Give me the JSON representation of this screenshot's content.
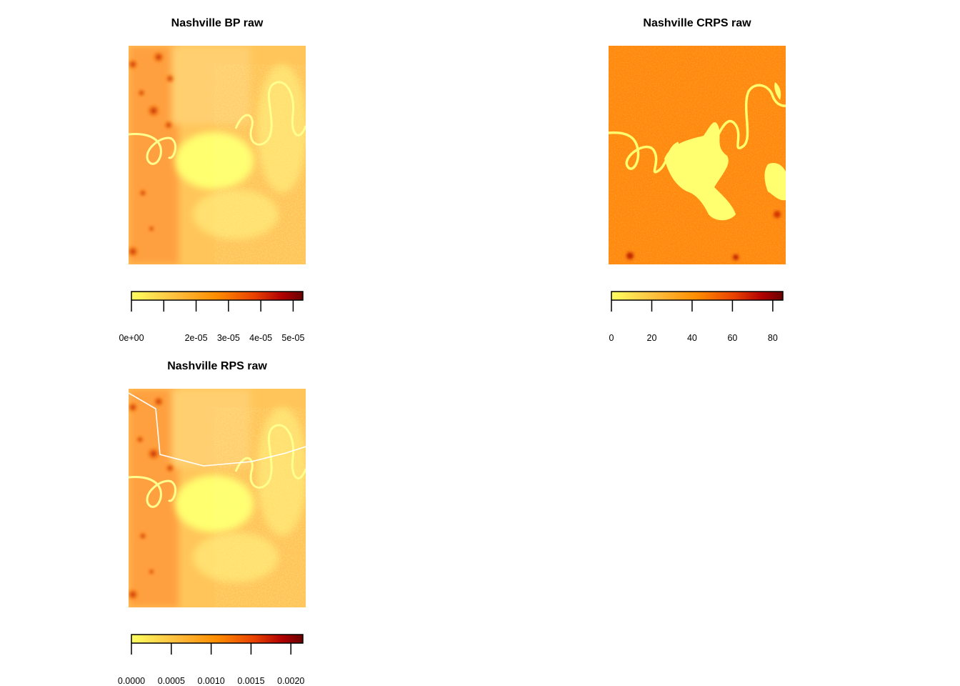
{
  "chart_data": [
    {
      "type": "heatmap",
      "title": "Nashville BP raw",
      "colormap": [
        "#ffff60",
        "#ffc040",
        "#ff8c00",
        "#e84000",
        "#b00000",
        "#6a0000"
      ],
      "legend": {
        "range": [
          0,
          5.3e-05
        ],
        "ticks": [
          0,
          1e-05,
          2e-05,
          3e-05,
          4e-05,
          5e-05
        ],
        "tick_labels": [
          "0e+00",
          "",
          "2e-05",
          "3e-05",
          "4e-05",
          "5e-05"
        ]
      }
    },
    {
      "type": "heatmap",
      "title": "Nashville CRPS raw",
      "colormap": [
        "#ffff60",
        "#ffc040",
        "#ff8c00",
        "#e84000",
        "#b00000",
        "#6a0000"
      ],
      "legend": {
        "range": [
          0,
          85
        ],
        "ticks": [
          0,
          20,
          40,
          60,
          80
        ],
        "tick_labels": [
          "0",
          "20",
          "40",
          "60",
          "80"
        ]
      }
    },
    {
      "type": "heatmap",
      "title": "Nashville RPS raw",
      "colormap": [
        "#ffff60",
        "#ffc040",
        "#ff8c00",
        "#e84000",
        "#b00000",
        "#6a0000"
      ],
      "legend": {
        "range": [
          0,
          0.00215
        ],
        "ticks": [
          0,
          0.0005,
          0.001,
          0.0015,
          0.002
        ],
        "tick_labels": [
          "0.0000",
          "0.0005",
          "0.0010",
          "0.0015",
          "0.0020"
        ]
      }
    }
  ]
}
